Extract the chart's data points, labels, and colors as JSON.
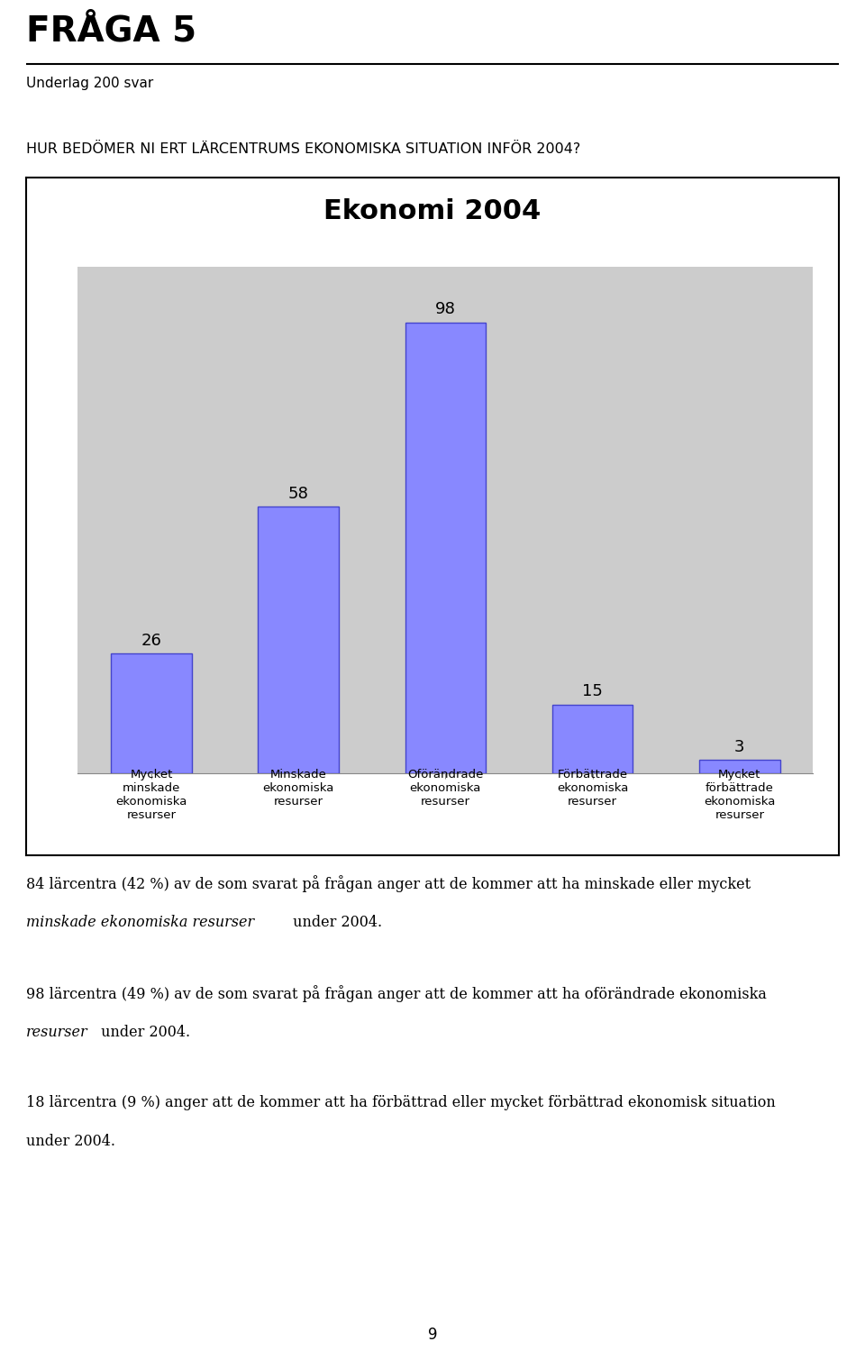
{
  "title_fraga": "FRÅGA 5",
  "subtitle": "Underlag 200 svar",
  "question": "HUR BEDÖMER NI ERT LÄRCENTRUMS EKONOMISKA SITUATION INFÖR 2004?",
  "chart_title": "Ekonomi 2004",
  "categories": [
    "Mycket\nminskade\nekonomiska\nresurser",
    "Minskade\nekonomiska\nresurser",
    "Oförändrade\nekonomiska\nresurser",
    "Förbättrade\nekonomiska\nresurser",
    "Mycket\nförbättrade\nekonomiska\nresurser"
  ],
  "values": [
    26,
    58,
    98,
    15,
    3
  ],
  "bar_color": "#8888ff",
  "bar_edge_color": "#4444cc",
  "chart_bg": "#cccccc",
  "grid_color": "#ffffff",
  "page_number": "9",
  "ylim": [
    0,
    110
  ]
}
